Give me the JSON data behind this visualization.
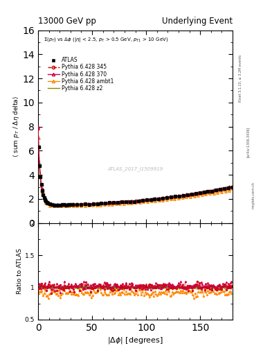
{
  "title_left": "13000 GeV pp",
  "title_right": "Underlying Event",
  "annotation": "Σ(p_{T}) vs Δφ (|η| < 2.5, p_{T} > 0.5 GeV, p_{T1} > 10 GeV)",
  "watermark": "ATLAS_2017_I1509919",
  "rivet_text": "Rivet 3.1.10, ≥ 3.2M events",
  "arxiv_text": "[arXiv:1306.3436]",
  "mcplots_text": "mcplots.cern.ch",
  "ylabel_main": "⟨ sum p_T / Δη delta⟩",
  "ylabel_ratio": "Ratio to ATLAS",
  "xlabel": "|Δ φ| [degrees]",
  "ylim_main": [
    0,
    16
  ],
  "ylim_ratio": [
    0.5,
    2
  ],
  "xlim": [
    0,
    180
  ],
  "yticks_main": [
    0,
    2,
    4,
    6,
    8,
    10,
    12,
    14,
    16
  ],
  "yticks_ratio": [
    0.5,
    1.0,
    1.5,
    2.0
  ],
  "xticks": [
    0,
    50,
    100,
    150
  ],
  "legend_entries": [
    "ATLAS",
    "Pythia 6.428 345",
    "Pythia 6.428 370",
    "Pythia 6.428 ambt1",
    "Pythia 6.428 z2"
  ],
  "colors": {
    "atlas": "#000000",
    "p345": "#cc0000",
    "p370": "#cc0044",
    "pambt1": "#ff8800",
    "pz2": "#888800"
  },
  "background_color": "#ffffff"
}
